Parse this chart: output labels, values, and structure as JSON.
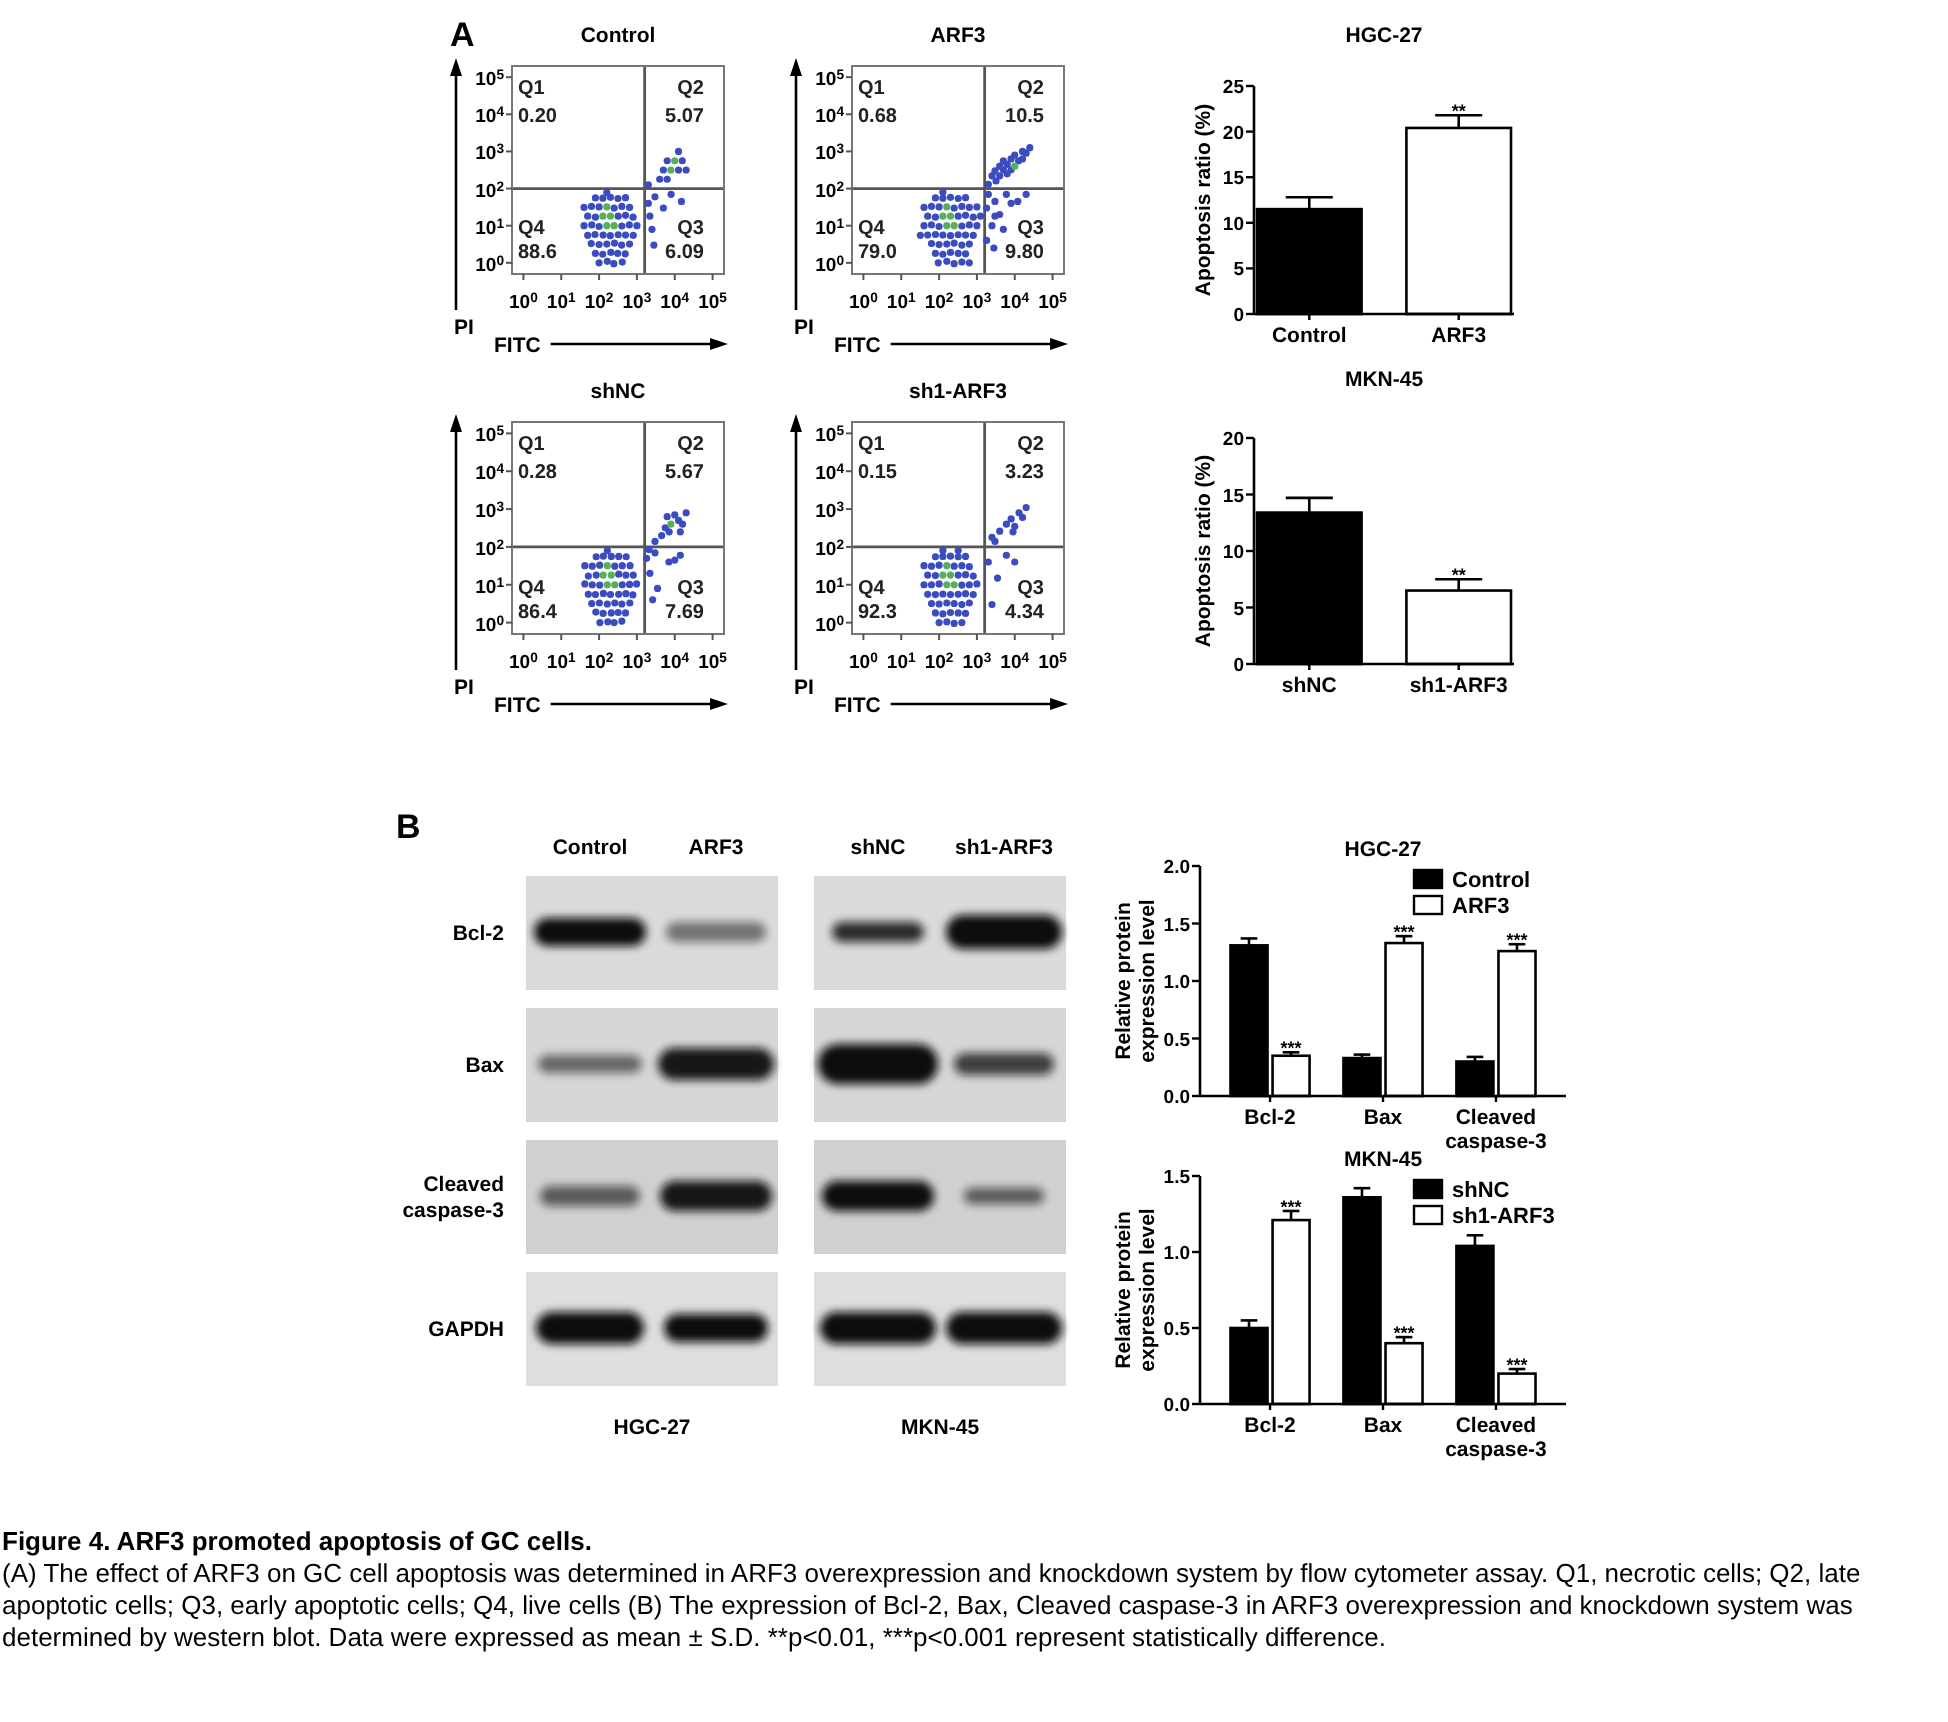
{
  "chart_data": [
    {
      "type": "scatter",
      "title": "Control",
      "xlabel": "FITC",
      "ylabel": "PI",
      "log": "xy",
      "xlim": [
        0.5,
        200000
      ],
      "ylim": [
        0.5,
        200000
      ],
      "xticks": [
        {
          "value": 1,
          "label": "10$^{0}$"
        },
        {
          "value": 10,
          "label": "10$^{1}$"
        },
        {
          "value": 100,
          "label": "10$^{2}$"
        },
        {
          "value": 1000,
          "label": "10$^{3}$"
        },
        {
          "value": 10000,
          "label": "10$^{4}$"
        },
        {
          "value": 100000,
          "label": "10$^{5}$"
        }
      ],
      "yticks": [
        {
          "value": 1,
          "label": "10$^{0}$"
        },
        {
          "value": 10,
          "label": "10$^{1}$"
        },
        {
          "value": 100,
          "label": "10$^{2}$"
        },
        {
          "value": 1000,
          "label": "10$^{3}$"
        },
        {
          "value": 10000,
          "label": "10$^{4}$"
        },
        {
          "value": 100000,
          "label": "10$^{5}$"
        }
      ],
      "marker": "circle",
      "ref_lines": [
        {
          "axis": "x",
          "value": 1600,
          "color": "#555555"
        },
        {
          "axis": "y",
          "value": 100,
          "color": "#555555"
        }
      ],
      "series": [
        {
          "color": "#3b4cc0",
          "x": [
            100,
            165,
            245,
            410,
            80,
            125,
            205,
            310,
            490,
            62,
            100,
            160,
            255,
            395,
            640,
            50,
            78,
            128,
            198,
            320,
            500,
            800,
            40,
            64,
            100,
            400,
            630,
            1000,
            50,
            80,
            320,
            500,
            790,
            40,
            63,
            100,
            250,
            400,
            640,
            80,
            126,
            200,
            316,
            500,
            160,
            4000,
            6300,
            5000,
            12600,
            20000,
            6300,
            15800,
            12600,
            2000,
            2000,
            2500,
            3000,
            5000,
            8000,
            15000,
            2800,
            2200
          ],
          "values": [
            1.0,
            1.1,
            0.95,
            1.05,
            1.8,
            1.7,
            1.9,
            1.8,
            1.75,
            3.3,
            3.1,
            3.2,
            3.4,
            3.0,
            3.2,
            5.5,
            5.8,
            5.6,
            5.4,
            5.7,
            5.6,
            5.5,
            10,
            10.5,
            9.5,
            9.8,
            10.5,
            10,
            18,
            17,
            18,
            19,
            17,
            31,
            33,
            32,
            30,
            33,
            31,
            56,
            55,
            58,
            54,
            57,
            78,
            178,
            178,
            316,
            316,
            316,
            562,
            562,
            1000,
            126,
            40,
            8,
            60,
            30,
            70,
            45,
            3,
            18
          ]
        },
        {
          "color": "#56b05a",
          "x": [
            160,
            126,
            200,
            160,
            250,
            7900,
            10000
          ],
          "values": [
            10,
            18,
            18,
            32,
            10,
            316,
            562
          ]
        }
      ],
      "annotations": [
        "Q1",
        "0.20",
        "Q2",
        "5.07",
        "Q3",
        "6.09",
        "Q4",
        "88.6",
        "A"
      ]
    },
    {
      "type": "scatter",
      "title": "ARF3",
      "xlabel": "FITC",
      "ylabel": "PI",
      "log": "xy",
      "xlim": [
        0.5,
        200000
      ],
      "ylim": [
        0.5,
        200000
      ],
      "xticks": [
        {
          "value": 1,
          "label": "10$^{0}$"
        },
        {
          "value": 10,
          "label": "10$^{1}$"
        },
        {
          "value": 100,
          "label": "10$^{2}$"
        },
        {
          "value": 1000,
          "label": "10$^{3}$"
        },
        {
          "value": 10000,
          "label": "10$^{4}$"
        },
        {
          "value": 100000,
          "label": "10$^{5}$"
        }
      ],
      "yticks": [
        {
          "value": 1,
          "label": "10$^{0}$"
        },
        {
          "value": 10,
          "label": "10$^{1}$"
        },
        {
          "value": 100,
          "label": "10$^{2}$"
        },
        {
          "value": 1000,
          "label": "10$^{3}$"
        },
        {
          "value": 10000,
          "label": "10$^{4}$"
        },
        {
          "value": 100000,
          "label": "10$^{5}$"
        }
      ],
      "marker": "circle",
      "ref_lines": [
        {
          "axis": "x",
          "value": 1600,
          "color": "#555555"
        },
        {
          "axis": "y",
          "value": 100,
          "color": "#555555"
        }
      ],
      "series": [
        {
          "color": "#3b4cc0",
          "x": [
            95,
            160,
            250,
            400,
            630,
            80,
            126,
            200,
            320,
            500,
            63,
            100,
            160,
            250,
            400,
            630,
            32,
            50,
            80,
            126,
            200,
            320,
            500,
            800,
            40,
            63,
            100,
            400,
            630,
            1000,
            50,
            80,
            320,
            500,
            800,
            1250,
            40,
            63,
            100,
            250,
            400,
            630,
            1000,
            80,
            126,
            200,
            320,
            500,
            126,
            2000,
            2500,
            3200,
            3000,
            4000,
            4000,
            5000,
            5000,
            6300,
            6300,
            8000,
            10000,
            12600,
            16000,
            16000,
            20000,
            25000,
            8000,
            1800,
            2000,
            2500,
            3000,
            4000,
            6000,
            8000,
            12000,
            1800,
            2800,
            5000,
            20000,
            3000
          ],
          "values": [
            1.0,
            1.1,
            0.95,
            1.05,
            1.0,
            1.8,
            1.7,
            1.9,
            1.8,
            1.75,
            3.3,
            3.1,
            3.2,
            3.4,
            3.0,
            3.2,
            5.5,
            5.6,
            5.8,
            5.6,
            5.4,
            5.7,
            5.6,
            5.5,
            10,
            10.5,
            9.5,
            9.8,
            10.5,
            10,
            18,
            17,
            18,
            19,
            17,
            18,
            31,
            33,
            32,
            30,
            33,
            31,
            32,
            56,
            55,
            58,
            54,
            57,
            80,
            130,
            220,
            160,
            300,
            220,
            400,
            320,
            560,
            250,
            450,
            630,
            800,
            560,
            1000,
            630,
            900,
            1260,
            320,
            30,
            70,
            10,
            45,
            20,
            70,
            40,
            45,
            4,
            2.5,
            8,
            70,
            18
          ]
        },
        {
          "color": "#56b05a",
          "x": [
            160,
            126,
            200,
            160,
            250,
            10000
          ],
          "values": [
            10,
            18,
            18,
            32,
            10,
            400
          ]
        }
      ],
      "annotations": [
        "Q1",
        "0.68",
        "Q2",
        "10.5",
        "Q3",
        "9.80",
        "Q4",
        "79.0"
      ]
    },
    {
      "type": "bar",
      "title": "HGC-27",
      "ylabel": "Apoptosis ratio (%)",
      "categories": [
        "Control",
        "ARF3"
      ],
      "values": [
        11.5,
        20.4
      ],
      "colors": [
        "#000000",
        "#ffffff"
      ],
      "errors": [
        [
          11.5,
          12.8
        ],
        [
          20.4,
          21.8
        ]
      ],
      "ylim": [
        0,
        25
      ],
      "yticks": [
        0,
        5,
        10,
        15,
        20,
        25
      ],
      "annotations": [
        {
          "text": "**",
          "x": "ARF3",
          "y": 20.4
        }
      ]
    },
    {
      "type": "scatter",
      "title": "shNC",
      "xlabel": "FITC",
      "ylabel": "PI",
      "log": "xy",
      "xlim": [
        0.5,
        200000
      ],
      "ylim": [
        0.5,
        200000
      ],
      "xticks": [
        {
          "value": 1,
          "label": "10$^{0}$"
        },
        {
          "value": 10,
          "label": "10$^{1}$"
        },
        {
          "value": 100,
          "label": "10$^{2}$"
        },
        {
          "value": 1000,
          "label": "10$^{3}$"
        },
        {
          "value": 10000,
          "label": "10$^{4}$"
        },
        {
          "value": 100000,
          "label": "10$^{5}$"
        }
      ],
      "yticks": [
        {
          "value": 1,
          "label": "10$^{0}$"
        },
        {
          "value": 10,
          "label": "10$^{1}$"
        },
        {
          "value": 100,
          "label": "10$^{2}$"
        },
        {
          "value": 1000,
          "label": "10$^{3}$"
        },
        {
          "value": 10000,
          "label": "10$^{4}$"
        },
        {
          "value": 100000,
          "label": "10$^{5}$"
        }
      ],
      "marker": "circle",
      "ref_lines": [
        {
          "axis": "x",
          "value": 1600,
          "color": "#555555"
        },
        {
          "axis": "y",
          "value": 100,
          "color": "#555555"
        }
      ],
      "series": [
        {
          "color": "#3b4cc0",
          "x": [
            105,
            170,
            250,
            400,
            82,
            128,
            210,
            320,
            500,
            64,
            102,
            165,
            260,
            400,
            650,
            52,
            80,
            130,
            200,
            330,
            510,
            780,
            42,
            66,
            104,
            410,
            640,
            980,
            52,
            84,
            330,
            510,
            800,
            42,
            66,
            104,
            260,
            410,
            660,
            84,
            130,
            210,
            330,
            520,
            165,
            3000,
            4500,
            5600,
            7100,
            12600,
            10000,
            16000,
            6300,
            14000,
            20000,
            1800,
            2200,
            3000,
            3500,
            7000,
            10000,
            14000,
            2600,
            2100
          ],
          "values": [
            1.0,
            1.05,
            1.0,
            1.1,
            1.9,
            1.75,
            1.8,
            1.85,
            1.8,
            3.2,
            3.3,
            3.1,
            3.3,
            3.1,
            3.3,
            5.6,
            5.5,
            5.9,
            5.5,
            5.6,
            5.8,
            5.4,
            10.5,
            10,
            9.8,
            10,
            10.2,
            10.5,
            17,
            18,
            19,
            18,
            18,
            32,
            31,
            33,
            31,
            32,
            32,
            55,
            57,
            56,
            56,
            55,
            80,
            140,
            200,
            320,
            250,
            500,
            700,
            400,
            630,
            250,
            800,
            50,
            20,
            70,
            8,
            40,
            45,
            60,
            4,
            85
          ]
        },
        {
          "color": "#56b05a",
          "x": [
            165,
            128,
            210,
            165,
            260,
            7900
          ],
          "values": [
            10,
            18,
            18,
            32,
            10,
            400
          ]
        }
      ],
      "annotations": [
        "Q1",
        "0.28",
        "Q2",
        "5.67",
        "Q3",
        "7.69",
        "Q4",
        "86.4"
      ]
    },
    {
      "type": "scatter",
      "title": "sh1-ARF3",
      "xlabel": "FITC",
      "ylabel": "PI",
      "log": "xy",
      "xlim": [
        0.5,
        200000
      ],
      "ylim": [
        0.5,
        200000
      ],
      "xticks": [
        {
          "value": 1,
          "label": "10$^{0}$"
        },
        {
          "value": 10,
          "label": "10$^{1}$"
        },
        {
          "value": 100,
          "label": "10$^{2}$"
        },
        {
          "value": 1000,
          "label": "10$^{3}$"
        },
        {
          "value": 10000,
          "label": "10$^{4}$"
        },
        {
          "value": 100000,
          "label": "10$^{5}$"
        }
      ],
      "yticks": [
        {
          "value": 1,
          "label": "10$^{0}$"
        },
        {
          "value": 10,
          "label": "10$^{1}$"
        },
        {
          "value": 100,
          "label": "10$^{2}$"
        },
        {
          "value": 1000,
          "label": "10$^{3}$"
        },
        {
          "value": 10000,
          "label": "10$^{4}$"
        },
        {
          "value": 100000,
          "label": "10$^{5}$"
        }
      ],
      "marker": "circle",
      "ref_lines": [
        {
          "axis": "x",
          "value": 1600,
          "color": "#555555"
        },
        {
          "axis": "y",
          "value": 100,
          "color": "#555555"
        }
      ],
      "series": [
        {
          "color": "#3b4cc0",
          "x": [
            100,
            160,
            250,
            400,
            80,
            126,
            200,
            320,
            500,
            63,
            100,
            160,
            250,
            400,
            630,
            50,
            80,
            126,
            200,
            320,
            500,
            800,
            40,
            63,
            100,
            400,
            630,
            1000,
            50,
            80,
            320,
            500,
            800,
            40,
            63,
            100,
            250,
            400,
            630,
            80,
            126,
            200,
            320,
            500,
            126,
            320,
            2500,
            3000,
            4000,
            6000,
            8000,
            9000,
            10000,
            13000,
            16000,
            20000,
            2000,
            3500,
            6000,
            10000,
            2500
          ],
          "values": [
            1.0,
            1.05,
            0.95,
            1.0,
            1.8,
            1.7,
            1.85,
            1.8,
            1.75,
            3.2,
            3.1,
            3.3,
            3.2,
            3.0,
            3.3,
            5.6,
            5.5,
            5.7,
            5.5,
            5.6,
            5.8,
            5.5,
            10,
            10,
            10.5,
            9.8,
            10,
            10.5,
            18,
            17.5,
            18,
            18.5,
            17,
            32,
            31,
            33,
            31,
            32,
            30,
            55,
            56,
            57,
            55,
            56,
            80,
            80,
            180,
            140,
            260,
            400,
            550,
            250,
            350,
            800,
            600,
            1100,
            40,
            15,
            60,
            40,
            3
          ]
        },
        {
          "color": "#56b05a",
          "x": [
            160,
            126,
            200,
            160,
            250
          ],
          "values": [
            10,
            18,
            18,
            32,
            10
          ]
        }
      ],
      "annotations": [
        "Q1",
        "0.15",
        "Q2",
        "3.23",
        "Q3",
        "4.34",
        "Q4",
        "92.3"
      ]
    },
    {
      "type": "bar",
      "title": "MKN-45",
      "ylabel": "Apoptosis ratio (%)",
      "categories": [
        "shNC",
        "sh1-ARF3"
      ],
      "values": [
        13.4,
        6.5
      ],
      "colors": [
        "#000000",
        "#ffffff"
      ],
      "errors": [
        [
          13.4,
          14.7
        ],
        [
          6.5,
          7.5
        ]
      ],
      "ylim": [
        0,
        20
      ],
      "yticks": [
        0,
        5,
        10,
        15,
        20
      ],
      "annotations": [
        {
          "text": "**",
          "x": "sh1-ARF3",
          "y": 6.5
        }
      ]
    },
    {
      "type": "other",
      "categories": [
        "Control",
        "ARF3",
        "shNC",
        "sh1-ARF3"
      ],
      "annotations": [
        "Bcl-2",
        "Bax",
        "Cleaved caspase-3",
        "GAPDH",
        "HGC-27",
        "MKN-45",
        "B"
      ]
    },
    {
      "type": "bar",
      "title": "HGC-27",
      "ylabel": "Relative protein expression level",
      "categories": [
        "Bcl-2",
        "Bax",
        "Cleaved caspase-3"
      ],
      "series": [
        {
          "name": "Control",
          "color": "#000000",
          "values": [
            1.31,
            0.33,
            0.3
          ],
          "errors": [
            [
              1.31,
              1.37
            ],
            [
              0.33,
              0.36
            ],
            [
              0.3,
              0.34
            ]
          ]
        },
        {
          "name": "ARF3",
          "color": "#ffffff",
          "values": [
            0.35,
            1.33,
            1.26
          ],
          "errors": [
            [
              0.35,
              0.38
            ],
            [
              1.33,
              1.39
            ],
            [
              1.26,
              1.32
            ]
          ]
        }
      ],
      "ylim": [
        0,
        2
      ],
      "yticks": [
        {
          "value": 0,
          "label": "0.0"
        },
        {
          "value": 0.5,
          "label": "0.5"
        },
        {
          "value": 1,
          "label": "1.0"
        },
        {
          "value": 1.5,
          "label": "1.5"
        },
        {
          "value": 2,
          "label": "2.0"
        }
      ],
      "legend": "top right",
      "annotations": [
        {
          "text": "***",
          "x": "Bcl-2",
          "y": 0.35
        },
        {
          "text": "***",
          "x": "Bax",
          "y": 1.33
        },
        {
          "text": "***",
          "x": "Cleaved caspase-3",
          "y": 1.26
        }
      ]
    },
    {
      "type": "bar",
      "title": "MKN-45",
      "ylabel": "Relative protein expression level",
      "categories": [
        "Bcl-2",
        "Bax",
        "Cleaved caspase-3"
      ],
      "series": [
        {
          "name": "shNC",
          "color": "#000000",
          "values": [
            0.5,
            1.36,
            1.04
          ],
          "errors": [
            [
              0.5,
              0.55
            ],
            [
              1.36,
              1.42
            ],
            [
              1.04,
              1.11
            ]
          ]
        },
        {
          "name": "sh1-ARF3",
          "color": "#ffffff",
          "values": [
            1.21,
            0.4,
            0.2
          ],
          "errors": [
            [
              1.21,
              1.27
            ],
            [
              0.4,
              0.44
            ],
            [
              0.2,
              0.23
            ]
          ]
        }
      ],
      "ylim": [
        0,
        1.5
      ],
      "yticks": [
        {
          "value": 0,
          "label": "0.0"
        },
        {
          "value": 0.5,
          "label": "0.5"
        },
        {
          "value": 1,
          "label": "1.0"
        },
        {
          "value": 1.5,
          "label": "1.5"
        }
      ],
      "legend": "top right",
      "annotations": [
        {
          "text": "***",
          "x": "Bcl-2",
          "y": 1.21
        },
        {
          "text": "***",
          "x": "Bax",
          "y": 0.4
        },
        {
          "text": "***",
          "x": "Cleaved caspase-3",
          "y": 0.2
        }
      ]
    },
    {
      "type": "other",
      "title": "Figure 4. ARF3 promoted apoptosis of GC cells.",
      "annotations": [
        "(A) The effect of ARF3 on GC cell apoptosis was determined in ARF3 overexpression and knockdown system by flow cytometer assay. Q1, necrotic cells; Q2, late apoptotic cells; Q3, early apoptotic cells; Q4, live cells (B) The expression of Bcl-2, Bax, Cleaved caspase-3 in ARF3 overexpression and knockdown system was determined by western blot. Data were expressed as mean ± S.D. **p<0.01, ***p<0.001 represent statistically difference."
      ]
    }
  ]
}
